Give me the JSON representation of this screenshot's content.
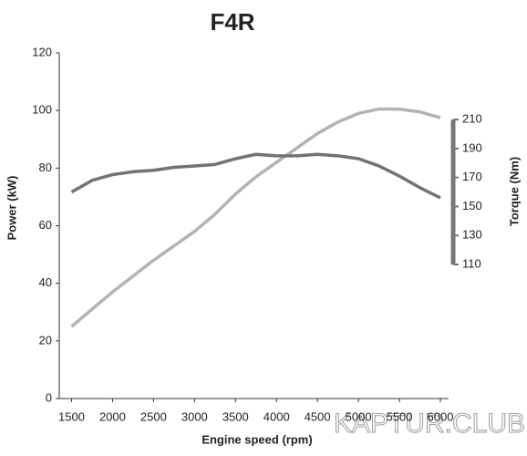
{
  "chart_data": {
    "type": "line",
    "title": "F4R",
    "x_label": "Engine speed (rpm)",
    "y_label": "Power (kW)",
    "y2_label": "Torque (Nm)",
    "x": [
      1500,
      1750,
      2000,
      2250,
      2500,
      2750,
      3000,
      3250,
      3500,
      3750,
      4000,
      4250,
      4500,
      4750,
      5000,
      5250,
      5500,
      5750,
      6000
    ],
    "series": [
      {
        "name": "Power",
        "color": "#b3b3b3",
        "values": [
          25,
          31,
          37,
          42.5,
          48,
          53,
          58,
          64,
          71,
          77,
          82,
          87,
          92,
          96,
          99,
          100.5,
          100.5,
          99.5,
          97.5
        ]
      },
      {
        "name": "Torque",
        "color": "#737373",
        "axis": "y2",
        "values": [
          160,
          168,
          172,
          174,
          175,
          177,
          178,
          179,
          183,
          186,
          185,
          185,
          186,
          185,
          183,
          178,
          171,
          163,
          156
        ]
      }
    ],
    "xlim": [
      1350,
      6100
    ],
    "xticks": [
      1500,
      2000,
      2500,
      3000,
      3500,
      4000,
      4500,
      5000,
      5500,
      6000
    ],
    "ylim": [
      0,
      120
    ],
    "yticks": [
      0,
      20,
      40,
      60,
      80,
      100,
      120
    ],
    "y2lim": [
      17.5,
      256
    ],
    "y2ticks": [
      110,
      130,
      150,
      170,
      190,
      210
    ],
    "watermark": "KAPTUR.CLUB"
  }
}
